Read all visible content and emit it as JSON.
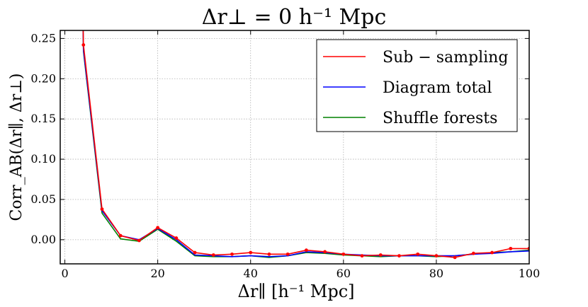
{
  "chart_data": {
    "type": "line",
    "title": "Δr⊥ = 0 h⁻¹ Mpc",
    "xlabel": "Δr∥ [h⁻¹ Mpc]",
    "ylabel": "Corr_AB(Δr∥, Δr⊥)",
    "xlim": [
      -1,
      100
    ],
    "ylim": [
      -0.03,
      0.26
    ],
    "xticks": [
      0,
      20,
      40,
      60,
      80,
      100
    ],
    "yticks": [
      -0.0,
      0.05,
      0.1,
      0.15,
      0.2,
      0.25
    ],
    "xtick_labels": [
      "0",
      "20",
      "40",
      "60",
      "80",
      "100"
    ],
    "ytick_labels": [
      "0.00",
      "0.05",
      "0.10",
      "0.15",
      "0.20",
      "0.25"
    ],
    "grid": true,
    "legend_position": "top-right",
    "x": [
      4,
      8,
      12,
      16,
      20,
      24,
      28,
      32,
      36,
      40,
      44,
      48,
      52,
      56,
      60,
      64,
      68,
      72,
      76,
      80,
      84,
      88,
      92,
      96,
      100
    ],
    "series": [
      {
        "name": "Sub − sampling",
        "color": "#ff0000",
        "markers": true,
        "values": [
          0.242,
          0.038,
          0.005,
          -0.001,
          0.015,
          0.002,
          -0.016,
          -0.019,
          -0.018,
          -0.016,
          -0.018,
          -0.018,
          -0.013,
          -0.015,
          -0.018,
          -0.02,
          -0.019,
          -0.02,
          -0.018,
          -0.02,
          -0.022,
          -0.017,
          -0.016,
          -0.011,
          -0.011
        ]
      },
      {
        "name": "Diagram total",
        "color": "#0000ff",
        "markers": false,
        "values": [
          0.236,
          0.036,
          0.005,
          0.0,
          0.014,
          0.0,
          -0.019,
          -0.02,
          -0.021,
          -0.02,
          -0.021,
          -0.02,
          -0.015,
          -0.016,
          -0.018,
          -0.019,
          -0.02,
          -0.02,
          -0.02,
          -0.02,
          -0.02,
          -0.018,
          -0.017,
          -0.015,
          -0.014
        ]
      },
      {
        "name": "Shuffle forests",
        "color": "#008000",
        "markers": false,
        "values": [
          0.234,
          0.033,
          0.001,
          -0.002,
          0.013,
          -0.002,
          -0.02,
          -0.021,
          -0.021,
          -0.02,
          -0.022,
          -0.02,
          -0.016,
          -0.017,
          -0.019,
          -0.02,
          -0.021,
          -0.02,
          -0.02,
          -0.021,
          -0.02,
          -0.018,
          -0.016,
          -0.015,
          -0.013
        ]
      }
    ],
    "top_overflow_value": 0.3
  }
}
